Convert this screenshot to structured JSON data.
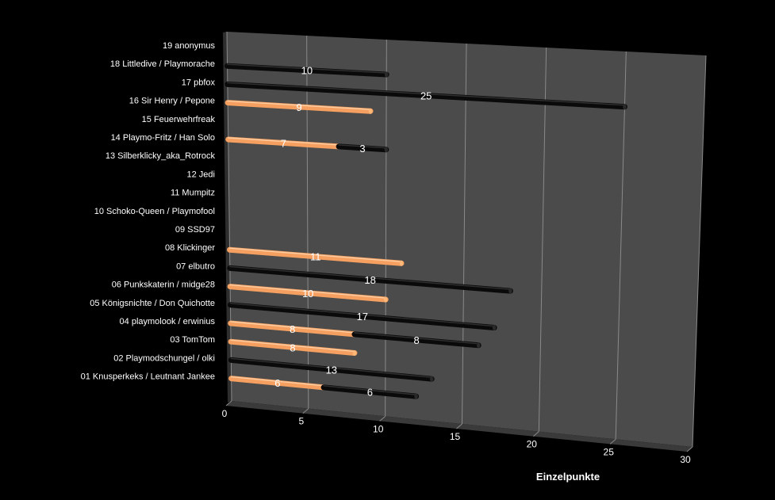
{
  "chart_data": {
    "type": "bar",
    "orientation": "horizontal",
    "stacked": true,
    "xlabel": "Einzelpunkte",
    "xlim": [
      0,
      30
    ],
    "xticks": [
      0,
      5,
      10,
      15,
      20,
      25,
      30
    ],
    "grid": true,
    "categories": [
      "01 Knusperkeks / Leutnant Jankee",
      "02 Playmodschungel / olki",
      "03 TomTom",
      "04 playmolook / erwinius",
      "05 Königsnichte / Don Quichotte",
      "06 Punkskaterin / midge28",
      "07 elbutro",
      "08 Klickinger",
      "09 SSD97",
      "10 Schoko-Queen / Playmofool",
      "11 Mumpitz",
      "12 Jedi",
      "13 Silberklicky_aka_Rotrock",
      "14 Playmo-Fritz / Han Solo",
      "15 Feuerwehrfreak",
      "16 Sir Henry / Pepone",
      "17 pbfox",
      "18 Littledive / Playmorache",
      "19 anonymus"
    ],
    "series": [
      {
        "name": "orange",
        "color": "#f5a060",
        "values": [
          6,
          null,
          8,
          8,
          null,
          10,
          null,
          11,
          null,
          null,
          null,
          null,
          null,
          7,
          null,
          9,
          null,
          null,
          null
        ]
      },
      {
        "name": "black",
        "color": "#0a0a0a",
        "values": [
          6,
          13,
          null,
          8,
          17,
          null,
          18,
          null,
          null,
          null,
          null,
          null,
          null,
          3,
          null,
          null,
          25,
          10,
          null
        ]
      }
    ]
  },
  "colors": {
    "background": "#000000",
    "wall": "#4b4b4b",
    "floor": "#3a3a3a",
    "grid": "#8a8a8a",
    "text": "#ffffff"
  }
}
